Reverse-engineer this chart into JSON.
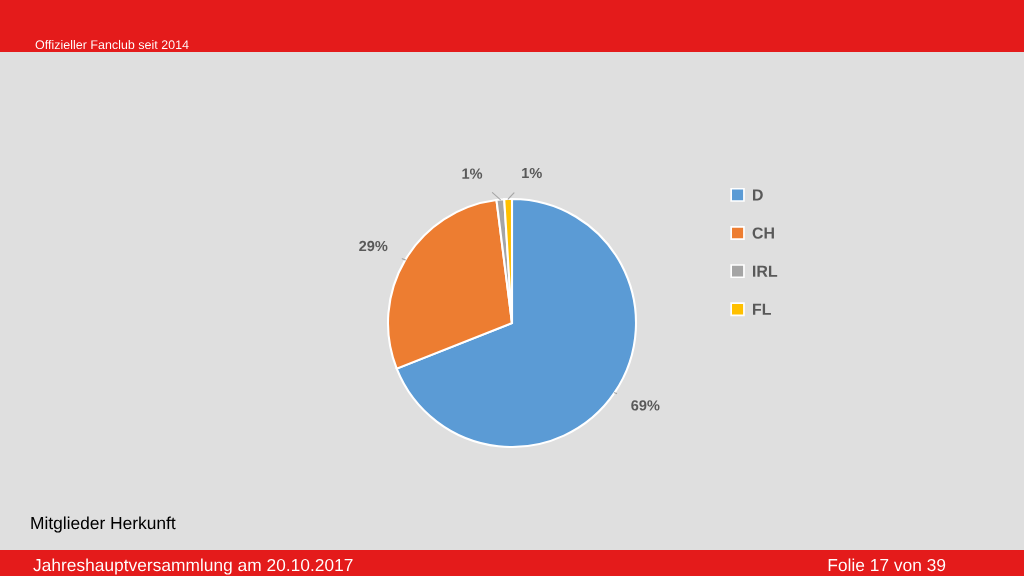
{
  "chart_data": {
    "type": "pie",
    "title": "Mitglieder Herkunft",
    "subtitle": "Offizieller Fanclub seit 2014",
    "categories": [
      "D",
      "CH",
      "IRL",
      "FL"
    ],
    "values": [
      69,
      29,
      1,
      1
    ],
    "colors": [
      "#5b9bd5",
      "#ed7d31",
      "#a5a5a5",
      "#ffc000"
    ],
    "value_labels": [
      "69%",
      "29%",
      "1%",
      "1%"
    ],
    "legend": "right",
    "annotations": [
      "Jahreshauptversammlung am 20.10.2017",
      "Folie 17 von 39"
    ]
  }
}
